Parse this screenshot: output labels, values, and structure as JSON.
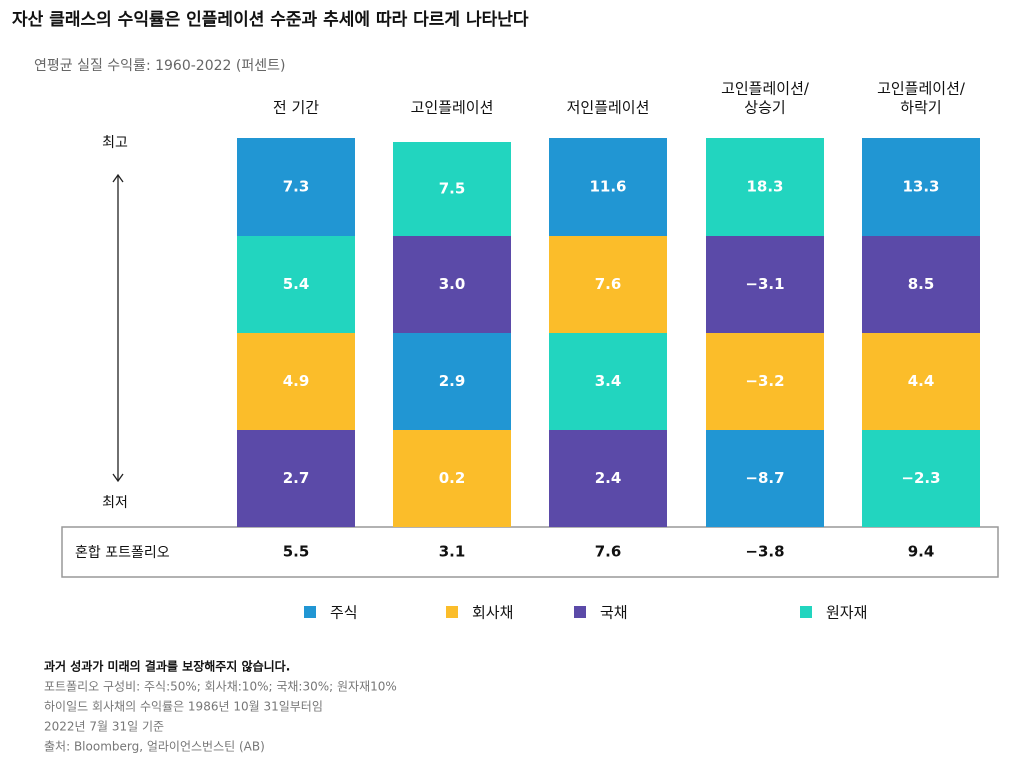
{
  "header": {
    "title": "자산 클래스의 수익률은 인플레이션 수준과 추세에 따라 다르게 나타난다",
    "subtitle": "연평균 실질 수익률: 1960-2022 (퍼센트)"
  },
  "axis": {
    "top": "최고",
    "bottom": "최저"
  },
  "mix_label": "혼합 포트폴리오",
  "columns": [
    {
      "label": [
        "전 기간"
      ],
      "cells": [
        {
          "value": "7.3",
          "color": "#2196d3"
        },
        {
          "value": "5.4",
          "color": "#22d5bf"
        },
        {
          "value": "4.9",
          "color": "#fbbd2a"
        },
        {
          "value": "2.7",
          "color": "#5b4aa8"
        }
      ],
      "mix": "5.5"
    },
    {
      "label": [
        "고인플레이션"
      ],
      "cells": [
        {
          "value": "7.5",
          "color": "#22d5bf"
        },
        {
          "value": "3.0",
          "color": "#5b4aa8"
        },
        {
          "value": "2.9",
          "color": "#2196d3"
        },
        {
          "value": "0.2",
          "color": "#fbbd2a"
        }
      ],
      "mix": "3.1"
    },
    {
      "label": [
        "저인플레이션"
      ],
      "cells": [
        {
          "value": "11.6",
          "color": "#2196d3"
        },
        {
          "value": "7.6",
          "color": "#fbbd2a"
        },
        {
          "value": "3.4",
          "color": "#22d5bf"
        },
        {
          "value": "2.4",
          "color": "#5b4aa8"
        }
      ],
      "mix": "7.6"
    },
    {
      "label": [
        "고인플레이션/",
        "상승기"
      ],
      "cells": [
        {
          "value": "18.3",
          "color": "#22d5bf"
        },
        {
          "value": "−3.1",
          "color": "#5b4aa8"
        },
        {
          "value": "−3.2",
          "color": "#fbbd2a"
        },
        {
          "value": "−8.7",
          "color": "#2196d3"
        }
      ],
      "mix": "−3.8"
    },
    {
      "label": [
        "고인플레이션/",
        "하락기"
      ],
      "cells": [
        {
          "value": "13.3",
          "color": "#2196d3"
        },
        {
          "value": "8.5",
          "color": "#5b4aa8"
        },
        {
          "value": "4.4",
          "color": "#fbbd2a"
        },
        {
          "value": "−2.3",
          "color": "#22d5bf"
        }
      ],
      "mix": "9.4"
    }
  ],
  "legend": [
    {
      "name": "주식",
      "color": "#2196d3"
    },
    {
      "name": "회사채",
      "color": "#fbbd2a"
    },
    {
      "name": "국채",
      "color": "#5b4aa8"
    },
    {
      "name": "원자재",
      "color": "#22d5bf"
    }
  ],
  "footer": [
    "과거 성과가 미래의 결과를 보장해주지 않습니다.",
    "포트폴리오 구성비: 주식:50%; 회사채:10%; 국채:30%; 원자재10%",
    "하이일드 회사채의 수익률은 1986년 10월 31일부터임",
    "2022년 7월 31일 기준",
    "출처: Bloomberg, 얼라이언스번스틴 (AB)"
  ]
}
